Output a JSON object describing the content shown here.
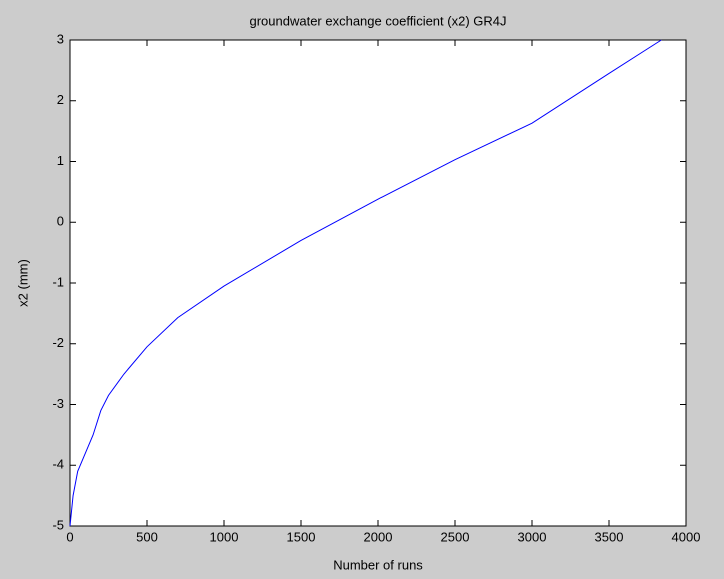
{
  "chart_data": {
    "type": "line",
    "title": "groundwater exchange coefficient (x2) GR4J",
    "x_label": "Number of runs",
    "y_label": "x2 (mm)",
    "x": [
      0,
      20,
      50,
      100,
      150,
      200,
      250,
      350,
      500,
      700,
      1000,
      1500,
      2000,
      2500,
      3000,
      3500,
      3840
    ],
    "series": [
      {
        "name": "x2",
        "color": "#0000ff",
        "values": [
          -5,
          -4.5,
          -4.1,
          -3.8,
          -3.5,
          -3.1,
          -2.85,
          -2.5,
          -2.05,
          -1.57,
          -1.05,
          -0.3,
          0.38,
          1.03,
          1.63,
          2.45,
          3.0
        ]
      }
    ],
    "xlim": [
      0,
      4000
    ],
    "xticks": [
      0,
      500,
      1000,
      1500,
      2000,
      2500,
      3000,
      3500,
      4000
    ],
    "ylim": [
      -5,
      3
    ],
    "yticks": [
      -5,
      -4,
      -3,
      -2,
      -1,
      0,
      1,
      2,
      3
    ],
    "grid": false
  }
}
